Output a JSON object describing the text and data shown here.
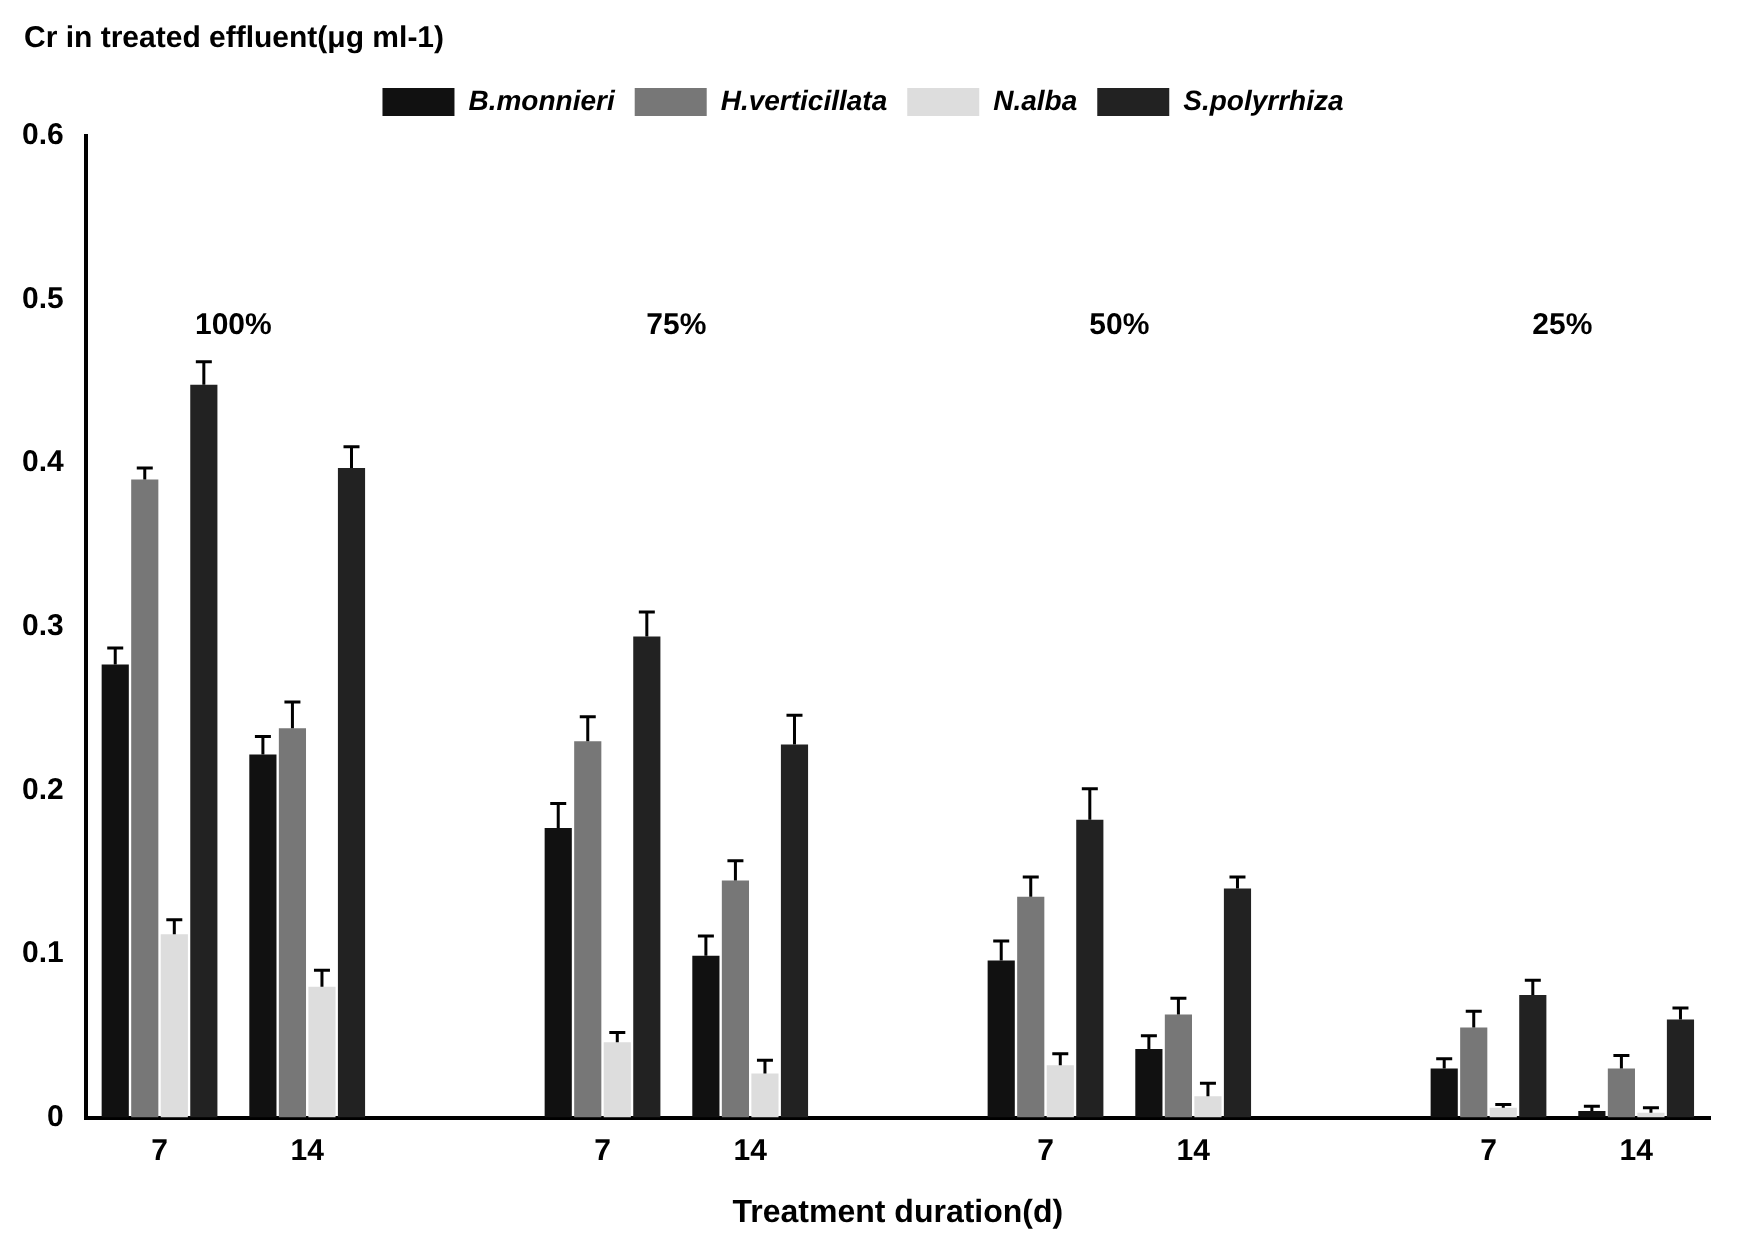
{
  "chart_data": {
    "type": "bar",
    "ylabel": "Cr in treated effluent(μg ml-1)",
    "xlabel": "Treatment duration(d)",
    "categories": [
      "7",
      "14",
      null,
      "7",
      "14",
      null,
      "7",
      "14",
      null,
      "7",
      "14"
    ],
    "series": [
      {
        "name": "B.monnieri",
        "color": "#111111",
        "values": [
          0.277,
          0.222,
          null,
          0.177,
          0.099,
          null,
          0.096,
          0.042,
          null,
          0.03,
          0.004
        ],
        "errors": [
          [
            0.277,
            0.287
          ],
          [
            0.222,
            0.233
          ],
          null,
          [
            0.177,
            0.192
          ],
          [
            0.099,
            0.111
          ],
          null,
          [
            0.096,
            0.108
          ],
          [
            0.042,
            0.05
          ],
          null,
          [
            0.03,
            0.036
          ],
          [
            0.004,
            0.007
          ]
        ]
      },
      {
        "name": "H.verticillata",
        "color": "#777777",
        "values": [
          0.39,
          0.238,
          null,
          0.23,
          0.145,
          null,
          0.135,
          0.063,
          null,
          0.055,
          0.03
        ],
        "errors": [
          [
            0.39,
            0.397
          ],
          [
            0.238,
            0.254
          ],
          null,
          [
            0.23,
            0.245
          ],
          [
            0.145,
            0.157
          ],
          null,
          [
            0.135,
            0.147
          ],
          [
            0.063,
            0.073
          ],
          null,
          [
            0.055,
            0.065
          ],
          [
            0.03,
            0.038
          ]
        ]
      },
      {
        "name": "N.alba",
        "color": "#dddddd",
        "values": [
          0.112,
          0.08,
          null,
          0.046,
          0.027,
          null,
          0.032,
          0.013,
          null,
          0.006,
          0.003
        ],
        "errors": [
          [
            0.112,
            0.121
          ],
          [
            0.08,
            0.09
          ],
          null,
          [
            0.046,
            0.052
          ],
          [
            0.027,
            0.035
          ],
          null,
          [
            0.032,
            0.039
          ],
          [
            0.013,
            0.021
          ],
          null,
          [
            0.006,
            0.008
          ],
          [
            0.003,
            0.006
          ]
        ]
      },
      {
        "name": "S.polyrrhiza",
        "color": "#222222",
        "values": [
          0.448,
          0.397,
          null,
          0.294,
          0.228,
          null,
          0.182,
          0.14,
          null,
          0.075,
          0.06
        ],
        "errors": [
          [
            0.448,
            0.462
          ],
          [
            0.397,
            0.41
          ],
          null,
          [
            0.294,
            0.309
          ],
          [
            0.228,
            0.246
          ],
          null,
          [
            0.182,
            0.201
          ],
          [
            0.14,
            0.147
          ],
          null,
          [
            0.075,
            0.084
          ],
          [
            0.06,
            0.067
          ]
        ]
      }
    ],
    "annotations": [
      "100%",
      "75%",
      "50%",
      "25%"
    ],
    "ylim": [
      0,
      0.6
    ],
    "yticks": [
      0,
      0.1,
      0.2,
      0.3,
      0.4,
      0.5,
      0.6
    ],
    "grid": false,
    "legend": "top"
  }
}
